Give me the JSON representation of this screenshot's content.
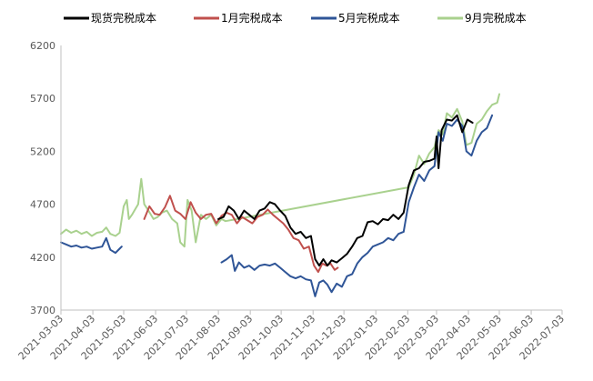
{
  "chart_data": {
    "type": "line",
    "title": "",
    "xlabel": "",
    "ylabel": "",
    "ylim": [
      3700,
      6200
    ],
    "y_ticks": [
      3700,
      4200,
      4700,
      5200,
      5700,
      6200
    ],
    "x_range": [
      "2021-03-03",
      "2022-07-03"
    ],
    "x_ticks": [
      "2021-03-03",
      "2021-04-03",
      "2021-05-03",
      "2021-06-03",
      "2021-07-03",
      "2021-08-03",
      "2021-09-03",
      "2021-10-03",
      "2021-11-03",
      "2021-12-03",
      "2022-01-03",
      "2022-02-03",
      "2022-03-03",
      "2022-04-03",
      "2022-05-03",
      "2022-06-03",
      "2022-07-03"
    ],
    "legend_position": "top",
    "grid": false,
    "series": [
      {
        "name": "现货完税成本",
        "color": "#000000",
        "points": [
          [
            "2021-08-03",
            4560
          ],
          [
            "2021-08-08",
            4580
          ],
          [
            "2021-08-13",
            4680
          ],
          [
            "2021-08-18",
            4640
          ],
          [
            "2021-08-23",
            4560
          ],
          [
            "2021-08-28",
            4640
          ],
          [
            "2021-09-02",
            4600
          ],
          [
            "2021-09-07",
            4560
          ],
          [
            "2021-09-12",
            4640
          ],
          [
            "2021-09-17",
            4660
          ],
          [
            "2021-09-22",
            4720
          ],
          [
            "2021-09-27",
            4700
          ],
          [
            "2021-10-02",
            4640
          ],
          [
            "2021-10-07",
            4590
          ],
          [
            "2021-10-12",
            4480
          ],
          [
            "2021-10-17",
            4420
          ],
          [
            "2021-10-22",
            4440
          ],
          [
            "2021-10-27",
            4380
          ],
          [
            "2021-11-01",
            4400
          ],
          [
            "2021-11-05",
            4180
          ],
          [
            "2021-11-09",
            4120
          ],
          [
            "2021-11-13",
            4180
          ],
          [
            "2021-11-17",
            4120
          ],
          [
            "2021-11-21",
            4170
          ],
          [
            "2021-11-26",
            4150
          ],
          [
            "2021-12-01",
            4190
          ],
          [
            "2021-12-06",
            4230
          ],
          [
            "2021-12-11",
            4300
          ],
          [
            "2021-12-16",
            4380
          ],
          [
            "2021-12-21",
            4400
          ],
          [
            "2021-12-26",
            4530
          ],
          [
            "2021-12-31",
            4540
          ],
          [
            "2022-01-05",
            4510
          ],
          [
            "2022-01-10",
            4560
          ],
          [
            "2022-01-15",
            4550
          ],
          [
            "2022-01-20",
            4600
          ],
          [
            "2022-01-25",
            4560
          ],
          [
            "2022-01-30",
            4620
          ],
          [
            "2022-02-04",
            4880
          ],
          [
            "2022-02-09",
            5020
          ],
          [
            "2022-02-14",
            5040
          ],
          [
            "2022-02-19",
            5100
          ],
          [
            "2022-02-24",
            5110
          ],
          [
            "2022-03-01",
            5130
          ],
          [
            "2022-03-03",
            5340
          ],
          [
            "2022-03-05",
            5040
          ],
          [
            "2022-03-08",
            5400
          ],
          [
            "2022-03-13",
            5500
          ],
          [
            "2022-03-18",
            5490
          ],
          [
            "2022-03-23",
            5540
          ],
          [
            "2022-03-28",
            5380
          ],
          [
            "2022-04-02",
            5500
          ],
          [
            "2022-04-07",
            5470
          ]
        ]
      },
      {
        "name": "1月完税成本",
        "color": "#C0504D",
        "points": [
          [
            "2021-05-23",
            4560
          ],
          [
            "2021-05-28",
            4680
          ],
          [
            "2021-06-02",
            4610
          ],
          [
            "2021-06-07",
            4600
          ],
          [
            "2021-06-12",
            4670
          ],
          [
            "2021-06-17",
            4780
          ],
          [
            "2021-06-22",
            4640
          ],
          [
            "2021-06-27",
            4610
          ],
          [
            "2021-07-02",
            4560
          ],
          [
            "2021-07-07",
            4720
          ],
          [
            "2021-07-12",
            4620
          ],
          [
            "2021-07-17",
            4560
          ],
          [
            "2021-07-22",
            4600
          ],
          [
            "2021-07-27",
            4610
          ],
          [
            "2021-08-01",
            4520
          ],
          [
            "2021-08-06",
            4590
          ],
          [
            "2021-08-11",
            4620
          ],
          [
            "2021-08-16",
            4600
          ],
          [
            "2021-08-21",
            4520
          ],
          [
            "2021-08-26",
            4580
          ],
          [
            "2021-08-31",
            4550
          ],
          [
            "2021-09-05",
            4520
          ],
          [
            "2021-09-10",
            4580
          ],
          [
            "2021-09-15",
            4600
          ],
          [
            "2021-09-20",
            4650
          ],
          [
            "2021-09-25",
            4600
          ],
          [
            "2021-09-30",
            4560
          ],
          [
            "2021-10-05",
            4520
          ],
          [
            "2021-10-10",
            4460
          ],
          [
            "2021-10-15",
            4380
          ],
          [
            "2021-10-20",
            4360
          ],
          [
            "2021-10-25",
            4280
          ],
          [
            "2021-10-30",
            4300
          ],
          [
            "2021-11-04",
            4120
          ],
          [
            "2021-11-08",
            4060
          ],
          [
            "2021-11-12",
            4140
          ],
          [
            "2021-11-16",
            4120
          ],
          [
            "2021-11-20",
            4140
          ],
          [
            "2021-11-24",
            4080
          ],
          [
            "2021-11-27",
            4100
          ]
        ]
      },
      {
        "name": "5月完税成本",
        "color": "#2F5597",
        "points": [
          [
            "2021-03-03",
            4340
          ],
          [
            "2021-03-08",
            4320
          ],
          [
            "2021-03-13",
            4300
          ],
          [
            "2021-03-18",
            4310
          ],
          [
            "2021-03-23",
            4290
          ],
          [
            "2021-03-28",
            4300
          ],
          [
            "2021-04-02",
            4280
          ],
          [
            "2021-04-07",
            4290
          ],
          [
            "2021-04-12",
            4300
          ],
          [
            "2021-04-16",
            4380
          ],
          [
            "2021-04-20",
            4270
          ],
          [
            "2021-04-25",
            4240
          ],
          [
            "2021-04-29",
            4280
          ],
          [
            "2021-05-01",
            4300
          ],
          null,
          [
            "2021-08-06",
            4150
          ],
          [
            "2021-08-11",
            4180
          ],
          [
            "2021-08-16",
            4220
          ],
          [
            "2021-08-19",
            4070
          ],
          [
            "2021-08-23",
            4150
          ],
          [
            "2021-08-28",
            4100
          ],
          [
            "2021-09-02",
            4120
          ],
          [
            "2021-09-07",
            4080
          ],
          [
            "2021-09-12",
            4120
          ],
          [
            "2021-09-17",
            4130
          ],
          [
            "2021-09-22",
            4120
          ],
          [
            "2021-09-27",
            4140
          ],
          [
            "2021-10-02",
            4100
          ],
          [
            "2021-10-07",
            4060
          ],
          [
            "2021-10-12",
            4020
          ],
          [
            "2021-10-17",
            4000
          ],
          [
            "2021-10-22",
            4020
          ],
          [
            "2021-10-27",
            3990
          ],
          [
            "2021-11-01",
            3980
          ],
          [
            "2021-11-05",
            3830
          ],
          [
            "2021-11-09",
            3960
          ],
          [
            "2021-11-13",
            3980
          ],
          [
            "2021-11-17",
            3940
          ],
          [
            "2021-11-21",
            3870
          ],
          [
            "2021-11-26",
            3950
          ],
          [
            "2021-12-01",
            3920
          ],
          [
            "2021-12-06",
            4020
          ],
          [
            "2021-12-11",
            4040
          ],
          [
            "2021-12-16",
            4140
          ],
          [
            "2021-12-21",
            4200
          ],
          [
            "2021-12-26",
            4240
          ],
          [
            "2021-12-31",
            4300
          ],
          [
            "2022-01-05",
            4320
          ],
          [
            "2022-01-10",
            4340
          ],
          [
            "2022-01-15",
            4380
          ],
          [
            "2022-01-20",
            4360
          ],
          [
            "2022-01-25",
            4420
          ],
          [
            "2022-01-30",
            4440
          ],
          [
            "2022-02-04",
            4720
          ],
          [
            "2022-02-09",
            4860
          ],
          [
            "2022-02-14",
            4980
          ],
          [
            "2022-02-19",
            4920
          ],
          [
            "2022-02-24",
            5020
          ],
          [
            "2022-03-01",
            5060
          ],
          [
            "2022-03-05",
            5380
          ],
          [
            "2022-03-09",
            5300
          ],
          [
            "2022-03-13",
            5460
          ],
          [
            "2022-03-18",
            5440
          ],
          [
            "2022-03-23",
            5500
          ],
          [
            "2022-03-28",
            5440
          ],
          [
            "2022-04-01",
            5200
          ],
          [
            "2022-04-06",
            5160
          ],
          [
            "2022-04-11",
            5300
          ],
          [
            "2022-04-16",
            5380
          ],
          [
            "2022-04-21",
            5420
          ],
          [
            "2022-04-26",
            5540
          ]
        ]
      },
      {
        "name": "9月完税成本",
        "color": "#A9D18E",
        "points": [
          [
            "2021-03-03",
            4420
          ],
          [
            "2021-03-08",
            4460
          ],
          [
            "2021-03-13",
            4430
          ],
          [
            "2021-03-18",
            4450
          ],
          [
            "2021-03-23",
            4420
          ],
          [
            "2021-03-28",
            4440
          ],
          [
            "2021-04-02",
            4400
          ],
          [
            "2021-04-07",
            4430
          ],
          [
            "2021-04-12",
            4440
          ],
          [
            "2021-04-16",
            4480
          ],
          [
            "2021-04-20",
            4420
          ],
          [
            "2021-04-25",
            4400
          ],
          [
            "2021-04-29",
            4430
          ],
          [
            "2021-05-03",
            4680
          ],
          [
            "2021-05-06",
            4740
          ],
          [
            "2021-05-08",
            4560
          ],
          [
            "2021-05-11",
            4600
          ],
          [
            "2021-05-14",
            4650
          ],
          [
            "2021-05-17",
            4700
          ],
          [
            "2021-05-20",
            4940
          ],
          [
            "2021-05-23",
            4700
          ],
          [
            "2021-05-27",
            4640
          ],
          [
            "2021-06-01",
            4560
          ],
          [
            "2021-06-05",
            4580
          ],
          [
            "2021-06-09",
            4620
          ],
          [
            "2021-06-14",
            4640
          ],
          [
            "2021-06-19",
            4560
          ],
          [
            "2021-06-24",
            4520
          ],
          [
            "2021-06-27",
            4340
          ],
          [
            "2021-07-01",
            4300
          ],
          [
            "2021-07-04",
            4740
          ],
          [
            "2021-07-08",
            4640
          ],
          [
            "2021-07-12",
            4340
          ],
          [
            "2021-07-17",
            4600
          ],
          [
            "2021-07-22",
            4560
          ],
          [
            "2021-07-27",
            4600
          ],
          [
            "2021-08-01",
            4500
          ],
          [
            "2021-08-06",
            4560
          ],
          [
            "2021-08-10",
            4540
          ],
          [
            "2022-02-04",
            4860
          ],
          [
            "2022-02-09",
            4980
          ],
          [
            "2022-02-14",
            5160
          ],
          [
            "2022-02-19",
            5080
          ],
          [
            "2022-02-24",
            5180
          ],
          [
            "2022-03-01",
            5240
          ],
          [
            "2022-03-05",
            5400
          ],
          [
            "2022-03-09",
            5360
          ],
          [
            "2022-03-13",
            5560
          ],
          [
            "2022-03-18",
            5520
          ],
          [
            "2022-03-23",
            5600
          ],
          [
            "2022-03-28",
            5480
          ],
          [
            "2022-04-01",
            5260
          ],
          [
            "2022-04-06",
            5280
          ],
          [
            "2022-04-11",
            5460
          ],
          [
            "2022-04-16",
            5500
          ],
          [
            "2022-04-21",
            5580
          ],
          [
            "2022-04-26",
            5640
          ],
          [
            "2022-05-01",
            5660
          ],
          [
            "2022-05-03",
            5740
          ]
        ]
      }
    ]
  }
}
